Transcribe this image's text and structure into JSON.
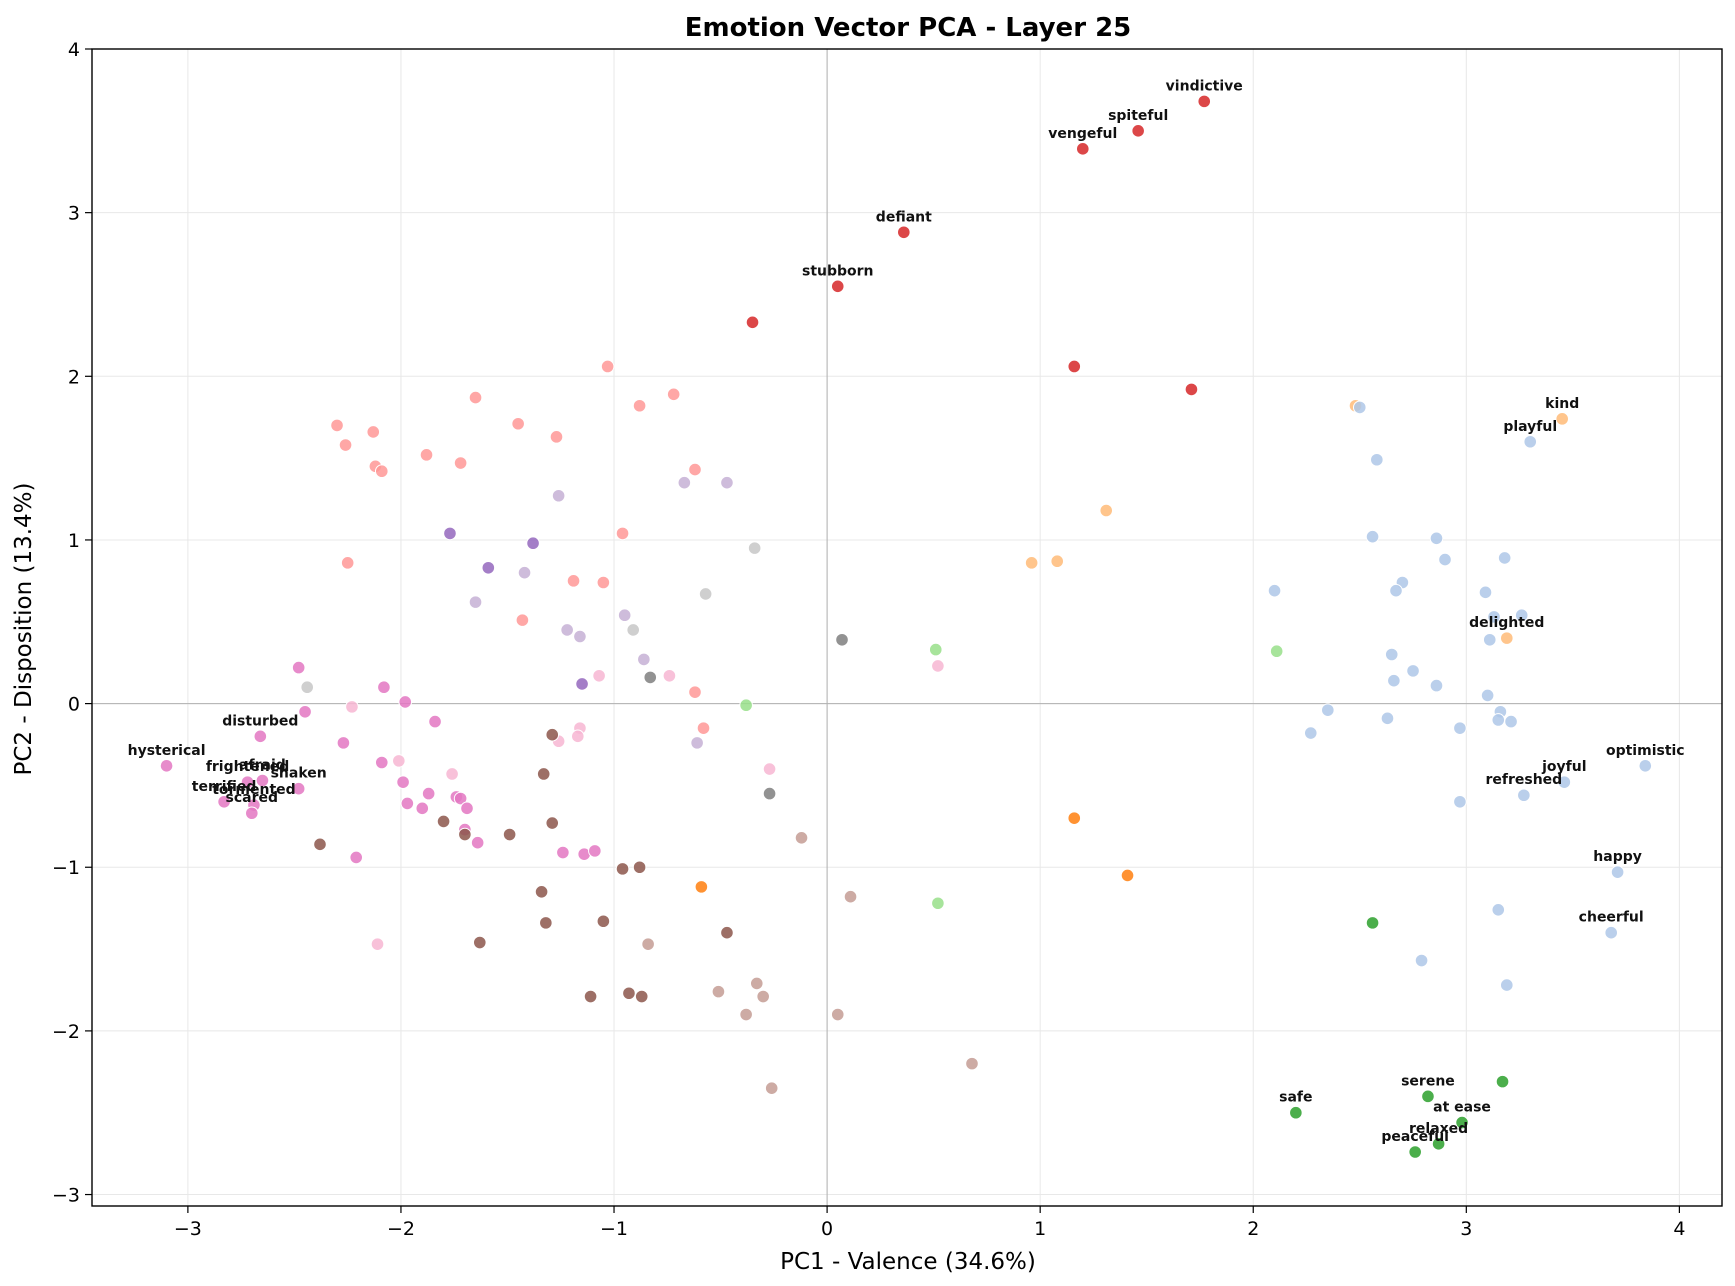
{
  "chart_data": {
    "type": "scatter",
    "title": "Emotion Vector PCA - Layer 25",
    "xlabel": "PC1 - Valence (34.6%)",
    "ylabel": "PC2 - Disposition (13.4%)",
    "xlim": [
      -3.45,
      4.2
    ],
    "ylim": [
      -3.07,
      4.0
    ],
    "xticks": [
      -3,
      -2,
      -1,
      0,
      1,
      2,
      3,
      4
    ],
    "yticks": [
      -3,
      -2,
      -1,
      0,
      1,
      2,
      3,
      4
    ],
    "xtick_labels": [
      "−3",
      "−2",
      "−1",
      "0",
      "1",
      "2",
      "3",
      "4"
    ],
    "ytick_labels": [
      "−3",
      "−2",
      "−1",
      "0",
      "1",
      "2",
      "3",
      "4"
    ],
    "grid": true,
    "reference_lines": {
      "x": 0,
      "y": 0
    },
    "colors": {
      "red": "#d62728",
      "salmon": "#ff9896",
      "lavender": "#c5b0d5",
      "purple": "#9467bd",
      "magenta": "#e377c2",
      "pink": "#f7b6d2",
      "brown": "#8c564b",
      "tan": "#c49c94",
      "gray": "#7f7f7f",
      "lightgray": "#c7c7c7",
      "lightgreen": "#98df8a",
      "green": "#2ca02c",
      "orange": "#ff7f0e",
      "peach": "#ffbb78",
      "lightblue": "#aec7e8"
    },
    "points": [
      {
        "x": 1.77,
        "y": 3.68,
        "c": "red",
        "label": "vindictive"
      },
      {
        "x": 1.46,
        "y": 3.5,
        "c": "red",
        "label": "spiteful"
      },
      {
        "x": 1.2,
        "y": 3.39,
        "c": "red",
        "label": "vengeful"
      },
      {
        "x": 0.36,
        "y": 2.88,
        "c": "red",
        "label": "defiant"
      },
      {
        "x": 0.05,
        "y": 2.55,
        "c": "red",
        "label": "stubborn"
      },
      {
        "x": -0.35,
        "y": 2.33,
        "c": "red"
      },
      {
        "x": 1.16,
        "y": 2.06,
        "c": "red"
      },
      {
        "x": 1.71,
        "y": 1.92,
        "c": "red"
      },
      {
        "x": -1.03,
        "y": 2.06,
        "c": "salmon"
      },
      {
        "x": -0.72,
        "y": 1.89,
        "c": "salmon"
      },
      {
        "x": -0.88,
        "y": 1.82,
        "c": "salmon"
      },
      {
        "x": -1.65,
        "y": 1.87,
        "c": "salmon"
      },
      {
        "x": -2.3,
        "y": 1.7,
        "c": "salmon"
      },
      {
        "x": -1.45,
        "y": 1.71,
        "c": "salmon"
      },
      {
        "x": -2.13,
        "y": 1.66,
        "c": "salmon"
      },
      {
        "x": -2.26,
        "y": 1.58,
        "c": "salmon"
      },
      {
        "x": -1.27,
        "y": 1.63,
        "c": "salmon"
      },
      {
        "x": -1.88,
        "y": 1.52,
        "c": "salmon"
      },
      {
        "x": -1.72,
        "y": 1.47,
        "c": "salmon"
      },
      {
        "x": -2.12,
        "y": 1.45,
        "c": "salmon"
      },
      {
        "x": -2.09,
        "y": 1.42,
        "c": "salmon"
      },
      {
        "x": -0.62,
        "y": 1.43,
        "c": "salmon"
      },
      {
        "x": -2.25,
        "y": 0.86,
        "c": "salmon"
      },
      {
        "x": -0.96,
        "y": 1.04,
        "c": "salmon"
      },
      {
        "x": -1.19,
        "y": 0.75,
        "c": "salmon"
      },
      {
        "x": -1.05,
        "y": 0.74,
        "c": "salmon"
      },
      {
        "x": -1.43,
        "y": 0.51,
        "c": "salmon"
      },
      {
        "x": -0.62,
        "y": 0.07,
        "c": "salmon"
      },
      {
        "x": -0.58,
        "y": -0.15,
        "c": "salmon"
      },
      {
        "x": -1.26,
        "y": 1.27,
        "c": "lavender"
      },
      {
        "x": -0.67,
        "y": 1.35,
        "c": "lavender"
      },
      {
        "x": -0.47,
        "y": 1.35,
        "c": "lavender"
      },
      {
        "x": -1.42,
        "y": 0.8,
        "c": "lavender"
      },
      {
        "x": -1.65,
        "y": 0.62,
        "c": "lavender"
      },
      {
        "x": -0.95,
        "y": 0.54,
        "c": "lavender"
      },
      {
        "x": -1.22,
        "y": 0.45,
        "c": "lavender"
      },
      {
        "x": -1.16,
        "y": 0.41,
        "c": "lavender"
      },
      {
        "x": -0.86,
        "y": 0.27,
        "c": "lavender"
      },
      {
        "x": -0.61,
        "y": -0.24,
        "c": "lavender"
      },
      {
        "x": -1.77,
        "y": 1.04,
        "c": "purple"
      },
      {
        "x": -1.38,
        "y": 0.98,
        "c": "purple"
      },
      {
        "x": -1.59,
        "y": 0.83,
        "c": "purple"
      },
      {
        "x": -1.15,
        "y": 0.12,
        "c": "purple"
      },
      {
        "x": -0.34,
        "y": 0.95,
        "c": "lightgray"
      },
      {
        "x": -0.57,
        "y": 0.67,
        "c": "lightgray"
      },
      {
        "x": -0.91,
        "y": 0.45,
        "c": "lightgray"
      },
      {
        "x": -2.44,
        "y": 0.1,
        "c": "lightgray"
      },
      {
        "x": 0.07,
        "y": 0.39,
        "c": "gray"
      },
      {
        "x": -0.83,
        "y": 0.16,
        "c": "gray"
      },
      {
        "x": -0.27,
        "y": -0.55,
        "c": "gray"
      },
      {
        "x": -1.07,
        "y": 0.17,
        "c": "pink"
      },
      {
        "x": -0.74,
        "y": 0.17,
        "c": "pink"
      },
      {
        "x": 0.52,
        "y": 0.23,
        "c": "pink"
      },
      {
        "x": -2.23,
        "y": -0.02,
        "c": "pink"
      },
      {
        "x": -1.16,
        "y": -0.15,
        "c": "pink"
      },
      {
        "x": -1.26,
        "y": -0.23,
        "c": "pink"
      },
      {
        "x": -1.17,
        "y": -0.2,
        "c": "pink"
      },
      {
        "x": -2.01,
        "y": -0.35,
        "c": "pink"
      },
      {
        "x": -1.76,
        "y": -0.43,
        "c": "pink"
      },
      {
        "x": -0.27,
        "y": -0.4,
        "c": "pink"
      },
      {
        "x": -2.11,
        "y": -1.47,
        "c": "pink"
      },
      {
        "x": -2.48,
        "y": 0.22,
        "c": "magenta"
      },
      {
        "x": -2.08,
        "y": 0.1,
        "c": "magenta"
      },
      {
        "x": -1.98,
        "y": 0.01,
        "c": "magenta"
      },
      {
        "x": -2.45,
        "y": -0.05,
        "c": "magenta"
      },
      {
        "x": -1.84,
        "y": -0.11,
        "c": "magenta"
      },
      {
        "x": -2.66,
        "y": -0.2,
        "c": "magenta",
        "label": "disturbed"
      },
      {
        "x": -2.27,
        "y": -0.24,
        "c": "magenta"
      },
      {
        "x": -3.1,
        "y": -0.38,
        "c": "magenta",
        "label": "hysterical"
      },
      {
        "x": -2.09,
        "y": -0.36,
        "c": "magenta"
      },
      {
        "x": -2.65,
        "y": -0.47,
        "c": "magenta",
        "label": "afraid"
      },
      {
        "x": -2.72,
        "y": -0.48,
        "c": "magenta",
        "label": "frightened"
      },
      {
        "x": -2.48,
        "y": -0.52,
        "c": "magenta",
        "label": "shaken"
      },
      {
        "x": -1.99,
        "y": -0.48,
        "c": "magenta"
      },
      {
        "x": -2.83,
        "y": -0.6,
        "c": "magenta",
        "label": "terrified"
      },
      {
        "x": -2.69,
        "y": -0.62,
        "c": "magenta",
        "label": "tormented"
      },
      {
        "x": -2.7,
        "y": -0.67,
        "c": "magenta",
        "label": "scared"
      },
      {
        "x": -1.87,
        "y": -0.55,
        "c": "magenta"
      },
      {
        "x": -1.97,
        "y": -0.61,
        "c": "magenta"
      },
      {
        "x": -1.9,
        "y": -0.64,
        "c": "magenta"
      },
      {
        "x": -1.74,
        "y": -0.57,
        "c": "magenta"
      },
      {
        "x": -1.72,
        "y": -0.58,
        "c": "magenta"
      },
      {
        "x": -1.69,
        "y": -0.64,
        "c": "magenta"
      },
      {
        "x": -1.7,
        "y": -0.77,
        "c": "magenta"
      },
      {
        "x": -1.64,
        "y": -0.85,
        "c": "magenta"
      },
      {
        "x": -2.21,
        "y": -0.94,
        "c": "magenta"
      },
      {
        "x": -1.24,
        "y": -0.91,
        "c": "magenta"
      },
      {
        "x": -1.14,
        "y": -0.92,
        "c": "magenta"
      },
      {
        "x": -1.09,
        "y": -0.9,
        "c": "magenta"
      },
      {
        "x": -1.29,
        "y": -0.19,
        "c": "brown"
      },
      {
        "x": -1.33,
        "y": -0.43,
        "c": "brown"
      },
      {
        "x": -1.29,
        "y": -0.73,
        "c": "brown"
      },
      {
        "x": -1.8,
        "y": -0.72,
        "c": "brown"
      },
      {
        "x": -1.7,
        "y": -0.8,
        "c": "brown"
      },
      {
        "x": -1.49,
        "y": -0.8,
        "c": "brown"
      },
      {
        "x": -2.38,
        "y": -0.86,
        "c": "brown"
      },
      {
        "x": -0.96,
        "y": -1.01,
        "c": "brown"
      },
      {
        "x": -0.88,
        "y": -1.0,
        "c": "brown"
      },
      {
        "x": -1.34,
        "y": -1.15,
        "c": "brown"
      },
      {
        "x": -1.32,
        "y": -1.34,
        "c": "brown"
      },
      {
        "x": -1.05,
        "y": -1.33,
        "c": "brown"
      },
      {
        "x": -1.63,
        "y": -1.46,
        "c": "brown"
      },
      {
        "x": -0.47,
        "y": -1.4,
        "c": "brown"
      },
      {
        "x": -1.11,
        "y": -1.79,
        "c": "brown"
      },
      {
        "x": -0.93,
        "y": -1.77,
        "c": "brown"
      },
      {
        "x": -0.87,
        "y": -1.79,
        "c": "brown"
      },
      {
        "x": -0.12,
        "y": -0.82,
        "c": "tan"
      },
      {
        "x": 0.11,
        "y": -1.18,
        "c": "tan"
      },
      {
        "x": -0.84,
        "y": -1.47,
        "c": "tan"
      },
      {
        "x": -0.51,
        "y": -1.76,
        "c": "tan"
      },
      {
        "x": -0.33,
        "y": -1.71,
        "c": "tan"
      },
      {
        "x": -0.3,
        "y": -1.79,
        "c": "tan"
      },
      {
        "x": -0.38,
        "y": -1.9,
        "c": "tan"
      },
      {
        "x": 0.05,
        "y": -1.9,
        "c": "tan"
      },
      {
        "x": 0.68,
        "y": -2.2,
        "c": "tan"
      },
      {
        "x": -0.26,
        "y": -2.35,
        "c": "tan"
      },
      {
        "x": 0.51,
        "y": 0.33,
        "c": "lightgreen"
      },
      {
        "x": 2.11,
        "y": 0.32,
        "c": "lightgreen"
      },
      {
        "x": -0.38,
        "y": -0.01,
        "c": "lightgreen"
      },
      {
        "x": 0.52,
        "y": -1.22,
        "c": "lightgreen"
      },
      {
        "x": 1.16,
        "y": -0.7,
        "c": "orange"
      },
      {
        "x": 1.41,
        "y": -1.05,
        "c": "orange"
      },
      {
        "x": -0.59,
        "y": -1.12,
        "c": "orange"
      },
      {
        "x": 3.45,
        "y": 1.74,
        "c": "peach",
        "label": "kind"
      },
      {
        "x": 2.48,
        "y": 1.82,
        "c": "peach"
      },
      {
        "x": 1.31,
        "y": 1.18,
        "c": "peach"
      },
      {
        "x": 0.96,
        "y": 0.86,
        "c": "peach"
      },
      {
        "x": 1.08,
        "y": 0.87,
        "c": "peach"
      },
      {
        "x": 3.19,
        "y": 0.4,
        "c": "peach",
        "label": "delighted"
      },
      {
        "x": 3.3,
        "y": 1.6,
        "c": "lightblue",
        "label": "playful"
      },
      {
        "x": 2.5,
        "y": 1.81,
        "c": "lightblue"
      },
      {
        "x": 2.58,
        "y": 1.49,
        "c": "lightblue"
      },
      {
        "x": 2.56,
        "y": 1.02,
        "c": "lightblue"
      },
      {
        "x": 2.86,
        "y": 1.01,
        "c": "lightblue"
      },
      {
        "x": 2.9,
        "y": 0.88,
        "c": "lightblue"
      },
      {
        "x": 3.18,
        "y": 0.89,
        "c": "lightblue"
      },
      {
        "x": 2.1,
        "y": 0.69,
        "c": "lightblue"
      },
      {
        "x": 2.7,
        "y": 0.74,
        "c": "lightblue"
      },
      {
        "x": 2.67,
        "y": 0.69,
        "c": "lightblue"
      },
      {
        "x": 3.09,
        "y": 0.68,
        "c": "lightblue"
      },
      {
        "x": 3.13,
        "y": 0.53,
        "c": "lightblue"
      },
      {
        "x": 3.26,
        "y": 0.54,
        "c": "lightblue"
      },
      {
        "x": 3.11,
        "y": 0.39,
        "c": "lightblue"
      },
      {
        "x": 2.65,
        "y": 0.3,
        "c": "lightblue"
      },
      {
        "x": 2.75,
        "y": 0.2,
        "c": "lightblue"
      },
      {
        "x": 2.66,
        "y": 0.14,
        "c": "lightblue"
      },
      {
        "x": 2.86,
        "y": 0.11,
        "c": "lightblue"
      },
      {
        "x": 3.1,
        "y": 0.05,
        "c": "lightblue"
      },
      {
        "x": 2.35,
        "y": -0.04,
        "c": "lightblue"
      },
      {
        "x": 3.16,
        "y": -0.05,
        "c": "lightblue"
      },
      {
        "x": 2.63,
        "y": -0.09,
        "c": "lightblue"
      },
      {
        "x": 3.15,
        "y": -0.1,
        "c": "lightblue"
      },
      {
        "x": 3.21,
        "y": -0.11,
        "c": "lightblue"
      },
      {
        "x": 2.27,
        "y": -0.18,
        "c": "lightblue"
      },
      {
        "x": 2.97,
        "y": -0.15,
        "c": "lightblue"
      },
      {
        "x": 3.84,
        "y": -0.38,
        "c": "lightblue",
        "label": "optimistic"
      },
      {
        "x": 3.46,
        "y": -0.48,
        "c": "lightblue",
        "label": "joyful"
      },
      {
        "x": 3.27,
        "y": -0.56,
        "c": "lightblue",
        "label": "refreshed"
      },
      {
        "x": 2.97,
        "y": -0.6,
        "c": "lightblue"
      },
      {
        "x": 3.71,
        "y": -1.03,
        "c": "lightblue",
        "label": "happy"
      },
      {
        "x": 3.15,
        "y": -1.26,
        "c": "lightblue"
      },
      {
        "x": 3.68,
        "y": -1.4,
        "c": "lightblue",
        "label": "cheerful"
      },
      {
        "x": 2.79,
        "y": -1.57,
        "c": "lightblue"
      },
      {
        "x": 3.19,
        "y": -1.72,
        "c": "lightblue"
      },
      {
        "x": 2.56,
        "y": -1.34,
        "c": "green"
      },
      {
        "x": 3.17,
        "y": -2.31,
        "c": "green"
      },
      {
        "x": 2.82,
        "y": -2.4,
        "c": "green",
        "label": "serene"
      },
      {
        "x": 2.2,
        "y": -2.5,
        "c": "green",
        "label": "safe"
      },
      {
        "x": 2.98,
        "y": -2.56,
        "c": "green",
        "label": "at ease"
      },
      {
        "x": 2.87,
        "y": -2.69,
        "c": "green",
        "label": "relaxed"
      },
      {
        "x": 2.76,
        "y": -2.74,
        "c": "green",
        "label": "peaceful"
      }
    ]
  }
}
